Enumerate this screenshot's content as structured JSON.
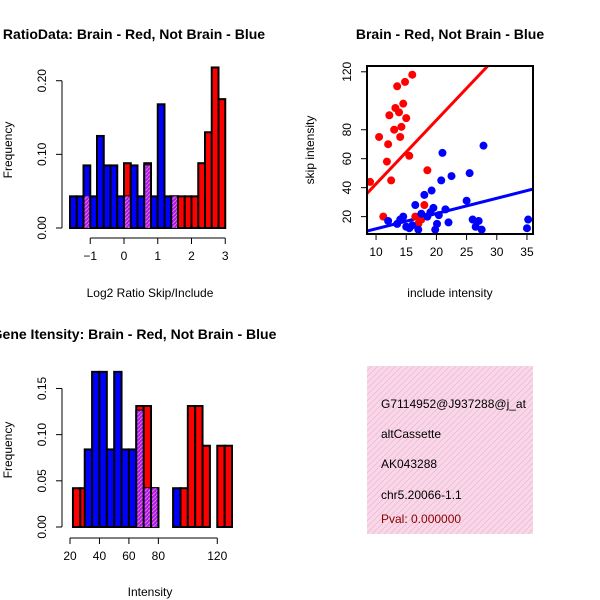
{
  "colors": {
    "red": "#ff0000",
    "blue": "#0000ff",
    "purple": "#a020f0",
    "info_bg": "#f8d8e8",
    "pval": "#8b0000"
  },
  "chart_data": [
    {
      "id": "ratio_hist",
      "type": "bar",
      "title": "RatioData: Brain - Red, Not Brain - Blue",
      "xlabel": "Log2 Ratio Skip/Include",
      "ylabel": "Frequency",
      "xlim": [
        -1.6,
        3.2
      ],
      "ylim": [
        0,
        0.22
      ],
      "xticks": [
        -1,
        0,
        1,
        2,
        3
      ],
      "xtick_labels": [
        "−1",
        "0",
        "1",
        "2",
        "3"
      ],
      "yticks": [
        0.0,
        0.1,
        0.2
      ],
      "ytick_labels": [
        "0.00",
        "0.10",
        "0.20"
      ],
      "bin_width": 0.2,
      "series": [
        {
          "name": "Not Brain",
          "color": "blue",
          "bins": [
            [
              -1.6,
              0.043
            ],
            [
              -1.4,
              0.043
            ],
            [
              -1.2,
              0.085
            ],
            [
              -1.0,
              0.043
            ],
            [
              -0.8,
              0.125
            ],
            [
              -0.6,
              0.085
            ],
            [
              -0.4,
              0.085
            ],
            [
              -0.2,
              0.043
            ],
            [
              0.0,
              0.043
            ],
            [
              0.2,
              0.085
            ],
            [
              0.4,
              0.043
            ],
            [
              0.6,
              0.085
            ],
            [
              0.8,
              0.043
            ],
            [
              1.0,
              0.168
            ],
            [
              1.2,
              0.043
            ],
            [
              1.4,
              0.043
            ]
          ]
        },
        {
          "name": "Brain",
          "color": "red",
          "bins": [
            [
              -1.2,
              0.043
            ],
            [
              0.0,
              0.088
            ],
            [
              0.6,
              0.088
            ],
            [
              1.4,
              0.043
            ],
            [
              1.6,
              0.043
            ],
            [
              1.8,
              0.043
            ],
            [
              2.0,
              0.043
            ],
            [
              2.2,
              0.088
            ],
            [
              2.4,
              0.13
            ],
            [
              2.6,
              0.218
            ],
            [
              2.8,
              0.175
            ]
          ]
        }
      ]
    },
    {
      "id": "scatter",
      "type": "scatter",
      "title": "Brain - Red, Not Brain - Blue",
      "xlabel": "include intensity",
      "ylabel": "skip intensity",
      "xlim": [
        8.5,
        36
      ],
      "ylim": [
        8,
        124
      ],
      "xticks": [
        10,
        15,
        20,
        25,
        30,
        35
      ],
      "xtick_labels": [
        "10",
        "15",
        "20",
        "25",
        "30",
        "35"
      ],
      "yticks": [
        20,
        40,
        60,
        80,
        120
      ],
      "ytick_labels": [
        "20",
        "40",
        "60",
        "80",
        "120"
      ],
      "series": [
        {
          "name": "Brain",
          "color": "red",
          "points": [
            [
              9,
              44
            ],
            [
              10.5,
              75
            ],
            [
              11.2,
              20
            ],
            [
              11.8,
              58
            ],
            [
              12,
              70
            ],
            [
              12.2,
              90
            ],
            [
              12.5,
              45
            ],
            [
              13,
              80
            ],
            [
              13.2,
              95
            ],
            [
              13.5,
              110
            ],
            [
              13.8,
              92
            ],
            [
              14,
              75
            ],
            [
              14.2,
              82
            ],
            [
              14.5,
              98
            ],
            [
              14.8,
              113
            ],
            [
              15,
              88
            ],
            [
              15.5,
              62
            ],
            [
              16,
              118
            ],
            [
              16.5,
              20
            ],
            [
              17,
              15
            ],
            [
              17.5,
              18
            ],
            [
              18,
              28
            ],
            [
              18.5,
              52
            ]
          ],
          "fit": [
            [
              8.5,
              36
            ],
            [
              28.5,
              124
            ]
          ]
        },
        {
          "name": "Not Brain",
          "color": "blue",
          "points": [
            [
              12,
              17
            ],
            [
              13.5,
              15
            ],
            [
              14,
              18
            ],
            [
              14.5,
              20
            ],
            [
              15,
              13
            ],
            [
              15.5,
              12
            ],
            [
              16,
              14
            ],
            [
              16.5,
              28
            ],
            [
              17,
              11
            ],
            [
              17.5,
              22
            ],
            [
              18,
              35
            ],
            [
              18.5,
              20
            ],
            [
              19,
              23
            ],
            [
              19.2,
              38
            ],
            [
              19.5,
              26
            ],
            [
              19.8,
              11
            ],
            [
              20.1,
              15
            ],
            [
              20.4,
              21
            ],
            [
              20.8,
              45
            ],
            [
              21,
              64
            ],
            [
              21.5,
              25
            ],
            [
              22,
              16
            ],
            [
              22.5,
              48
            ],
            [
              25,
              31
            ],
            [
              25.5,
              50
            ],
            [
              26,
              18
            ],
            [
              26.5,
              13
            ],
            [
              27,
              17
            ],
            [
              27.5,
              11
            ],
            [
              27.8,
              69
            ],
            [
              35,
              12
            ],
            [
              35.2,
              18
            ]
          ],
          "fit": [
            [
              8.5,
              10
            ],
            [
              36,
              39
            ]
          ]
        }
      ]
    },
    {
      "id": "intensity_hist",
      "type": "bar",
      "title": "Gene Itensity: Brain - Red, Not Brain - Blue",
      "xlabel": "Intensity",
      "ylabel": "Frequency",
      "xlim": [
        20,
        130
      ],
      "ylim": [
        0,
        0.17
      ],
      "xticks": [
        20,
        40,
        60,
        80,
        120
      ],
      "xtick_labels": [
        "20",
        "40",
        "60",
        "80",
        "120"
      ],
      "yticks": [
        0.0,
        0.05,
        0.1,
        0.15
      ],
      "ytick_labels": [
        "0.00",
        "0.05",
        "0.10",
        "0.15"
      ],
      "bin_width": 5,
      "series": [
        {
          "name": "Not Brain",
          "color": "blue",
          "bins": [
            [
              30,
              0.084
            ],
            [
              35,
              0.168
            ],
            [
              40,
              0.168
            ],
            [
              45,
              0.084
            ],
            [
              50,
              0.168
            ],
            [
              55,
              0.084
            ],
            [
              60,
              0.084
            ],
            [
              65,
              0.126
            ],
            [
              70,
              0.042
            ],
            [
              75,
              0.042
            ],
            [
              90,
              0.042
            ]
          ]
        },
        {
          "name": "Brain",
          "color": "red",
          "bins": [
            [
              22,
              0.042
            ],
            [
              27,
              0.042
            ],
            [
              65,
              0.131
            ],
            [
              70,
              0.131
            ],
            [
              75,
              0.042
            ],
            [
              95,
              0.042
            ],
            [
              100,
              0.131
            ],
            [
              105,
              0.131
            ],
            [
              110,
              0.088
            ],
            [
              120,
              0.088
            ],
            [
              125,
              0.088
            ]
          ]
        }
      ]
    }
  ],
  "info_panel": {
    "line1": "G7114952@J937288@j_at",
    "line2": "altCassette",
    "line3": "AK043288",
    "line4": "chr5.20066-1.1",
    "pval": "Pval: 0.000000"
  }
}
